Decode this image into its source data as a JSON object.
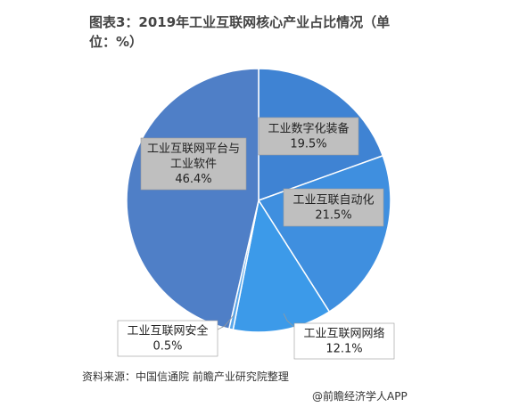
{
  "chart_data": {
    "type": "pie",
    "title": "图表3：2019年工业互联网核心产业占比情况（单位：%）",
    "unit": "%",
    "start_angle_deg": 0,
    "direction": "clockwise",
    "legend": "none",
    "slices": [
      {
        "name": "工业数字化装备",
        "value": 19.5,
        "value_label": "19.5%",
        "color": "#3f83d3"
      },
      {
        "name": "工业互联自动化",
        "value": 21.5,
        "value_label": "21.5%",
        "color": "#3f8fdf"
      },
      {
        "name": "工业互联网网络",
        "value": 12.1,
        "value_label": "12.1%",
        "color": "#3c9ae9"
      },
      {
        "name": "工业互联网安全",
        "value": 0.5,
        "value_label": "0.5%",
        "color": "#5aa7ea"
      },
      {
        "name": "工业互联网平台与工业软件",
        "name_lines": [
          "工业互联网平台与",
          "工业软件"
        ],
        "value": 46.4,
        "value_label": "46.4%",
        "color": "#4f7fc7"
      }
    ]
  },
  "footer": {
    "source": "资料来源：中国信通院 前瞻产业研究院整理",
    "brand": "@前瞻经济学人APP"
  }
}
